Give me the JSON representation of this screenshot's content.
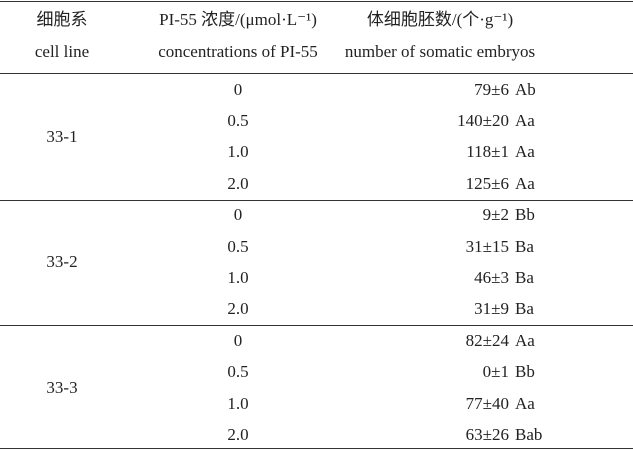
{
  "table": {
    "header": [
      [
        "细胞系",
        "cell line"
      ],
      [
        "PI-55 浓度/(μmol·L⁻¹)",
        "concentrations of PI-55"
      ],
      [
        "体细胞胚数/(个·g⁻¹)",
        "number of somatic embryos"
      ]
    ],
    "groups": [
      {
        "cell_line": "33-1",
        "rows": [
          {
            "concentration": "0",
            "count": "79±6",
            "grade": "Ab"
          },
          {
            "concentration": "0.5",
            "count": "140±20",
            "grade": "Aa"
          },
          {
            "concentration": "1.0",
            "count": "118±1",
            "grade": "Aa"
          },
          {
            "concentration": "2.0",
            "count": "125±6",
            "grade": "Aa"
          }
        ]
      },
      {
        "cell_line": "33-2",
        "rows": [
          {
            "concentration": "0",
            "count": "9±2",
            "grade": "Bb"
          },
          {
            "concentration": "0.5",
            "count": "31±15",
            "grade": "Ba"
          },
          {
            "concentration": "1.0",
            "count": "46±3",
            "grade": "Ba"
          },
          {
            "concentration": "2.0",
            "count": "31±9",
            "grade": "Ba"
          }
        ]
      },
      {
        "cell_line": "33-3",
        "rows": [
          {
            "concentration": "0",
            "count": "82±24",
            "grade": "Aa"
          },
          {
            "concentration": "0.5",
            "count": "0±1",
            "grade": "Bb"
          },
          {
            "concentration": "1.0",
            "count": "77±40",
            "grade": "Aa"
          },
          {
            "concentration": "2.0",
            "count": "63±26",
            "grade": "Bab"
          }
        ]
      }
    ]
  }
}
